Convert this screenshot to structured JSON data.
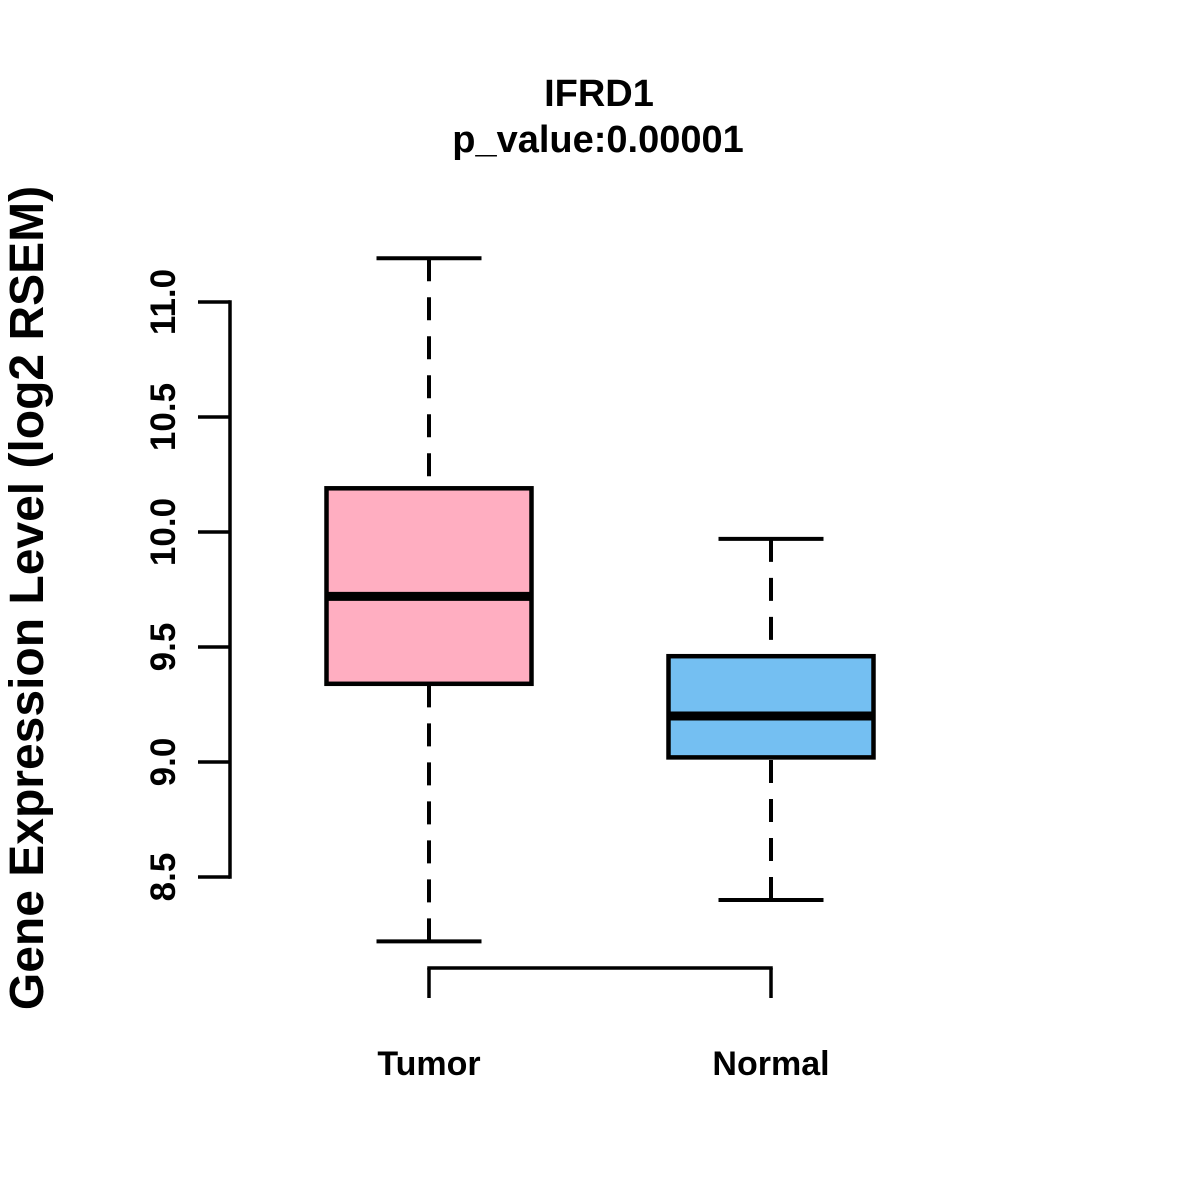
{
  "figure": {
    "background": "#FFFFFF",
    "stroke_color": "#000000"
  },
  "chart_data": {
    "type": "boxplot",
    "title": "IFRD1",
    "subtitle": "p_value:0.00001",
    "p_value": "0.00001",
    "ylabel": "Gene Expression Level (log2 RSEM)",
    "xlabel": "",
    "categories": [
      "Tumor",
      "Normal"
    ],
    "yticks": [
      8.5,
      9.0,
      9.5,
      10.0,
      10.5,
      11.0
    ],
    "ylim": [
      8.5,
      11.0
    ],
    "grid": false,
    "legend": "none",
    "series": [
      {
        "name": "Tumor",
        "fill": "#FFAEC1",
        "whisker_low": 8.22,
        "q1": 9.34,
        "median": 9.72,
        "q3": 10.19,
        "whisker_high": 11.19
      },
      {
        "name": "Normal",
        "fill": "#74BFF2",
        "whisker_low": 8.4,
        "q1": 9.02,
        "median": 9.2,
        "q3": 9.46,
        "whisker_high": 9.97
      }
    ]
  }
}
